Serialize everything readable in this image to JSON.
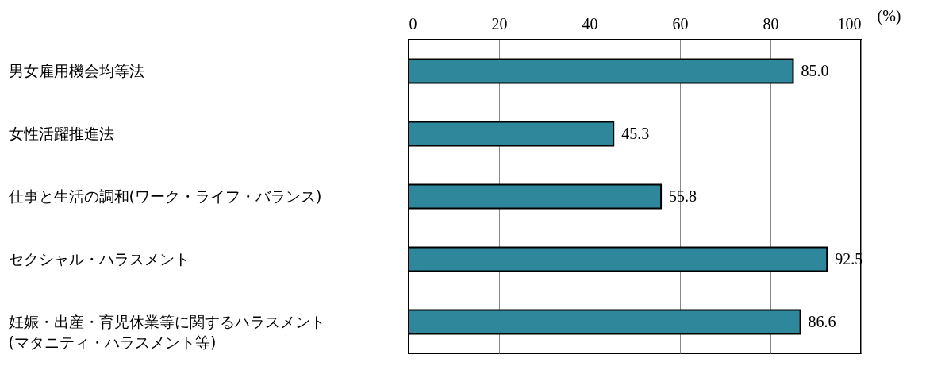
{
  "chart_data": {
    "type": "bar",
    "orientation": "horizontal",
    "xlabel": "(%)",
    "categories": [
      "男女雇用機会均等法",
      "女性活躍推進法",
      "仕事と生活の調和(ワーク・ライフ・バランス)",
      "セクシャル・ハラスメント",
      "妊娠・出産・育児休業等に関するハラスメント(マタニティ・ハラスメント等)"
    ],
    "values": [
      85.0,
      45.3,
      55.8,
      92.5,
      86.6
    ],
    "color": "#2e879a",
    "xlim": [
      0,
      100
    ],
    "xticks": [
      0,
      20,
      40,
      60,
      80,
      100
    ],
    "grid": "x",
    "value_labels": [
      "85.0",
      "45.3",
      "55.8",
      "92.5",
      "86.6"
    ]
  }
}
